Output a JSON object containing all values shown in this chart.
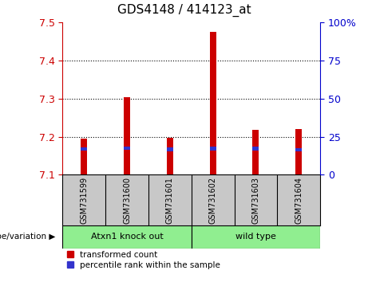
{
  "title": "GDS4148 / 414123_at",
  "samples": [
    "GSM731599",
    "GSM731600",
    "GSM731601",
    "GSM731602",
    "GSM731603",
    "GSM731604"
  ],
  "red_bar_tops": [
    7.195,
    7.305,
    7.198,
    7.475,
    7.218,
    7.22
  ],
  "blue_bar_tops": [
    7.163,
    7.165,
    7.162,
    7.164,
    7.164,
    7.161
  ],
  "blue_bar_height": 0.01,
  "bar_bottom": 7.1,
  "ylim": [
    7.1,
    7.5
  ],
  "yticks": [
    7.1,
    7.2,
    7.3,
    7.4,
    7.5
  ],
  "right_yticks": [
    0,
    25,
    50,
    75,
    100
  ],
  "group1": {
    "label": "Atxn1 knock out",
    "samples": [
      0,
      1,
      2
    ],
    "color": "#90EE90"
  },
  "group2": {
    "label": "wild type",
    "samples": [
      3,
      4,
      5
    ],
    "color": "#90EE90"
  },
  "genotype_label": "genotype/variation",
  "legend_red": "transformed count",
  "legend_blue": "percentile rank within the sample",
  "red_color": "#CC0000",
  "blue_color": "#3333CC",
  "bar_width": 0.15,
  "left_tick_color": "#CC0000",
  "right_tick_color": "#0000CC",
  "background_sample": "#C8C8C8",
  "background_group": "#90EE90",
  "grid_linestyle": ":",
  "grid_linewidth": 0.8
}
